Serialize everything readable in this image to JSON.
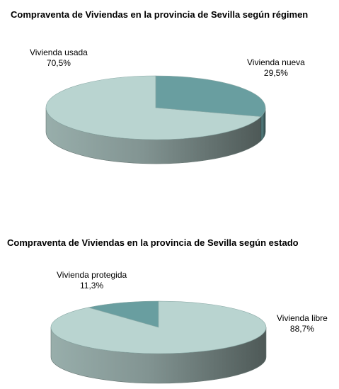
{
  "colors": {
    "slice_light_top": "#b9d4d0",
    "slice_dark_top": "#699ea0"
  },
  "chart_data": [
    {
      "type": "pie",
      "title": "Compraventa de Viviendas en la provincia de Sevilla según régimen",
      "slices": [
        {
          "label": "Vivienda usada",
          "value": 70.5,
          "value_label": "70,5%",
          "color": "#b9d4d0"
        },
        {
          "label": "Vivienda nueva",
          "value": 29.5,
          "value_label": "29,5%",
          "color": "#699ea0"
        }
      ],
      "style": "3d",
      "legend": "none"
    },
    {
      "type": "pie",
      "title": "Compraventa de Viviendas en la provincia de Sevilla según estado",
      "slices": [
        {
          "label": "Vivienda protegida",
          "value": 11.3,
          "value_label": "11,3%",
          "color": "#699ea0"
        },
        {
          "label": "Vivienda libre",
          "value": 88.7,
          "value_label": "88,7%",
          "color": "#b9d4d0"
        }
      ],
      "style": "3d",
      "legend": "none"
    }
  ]
}
